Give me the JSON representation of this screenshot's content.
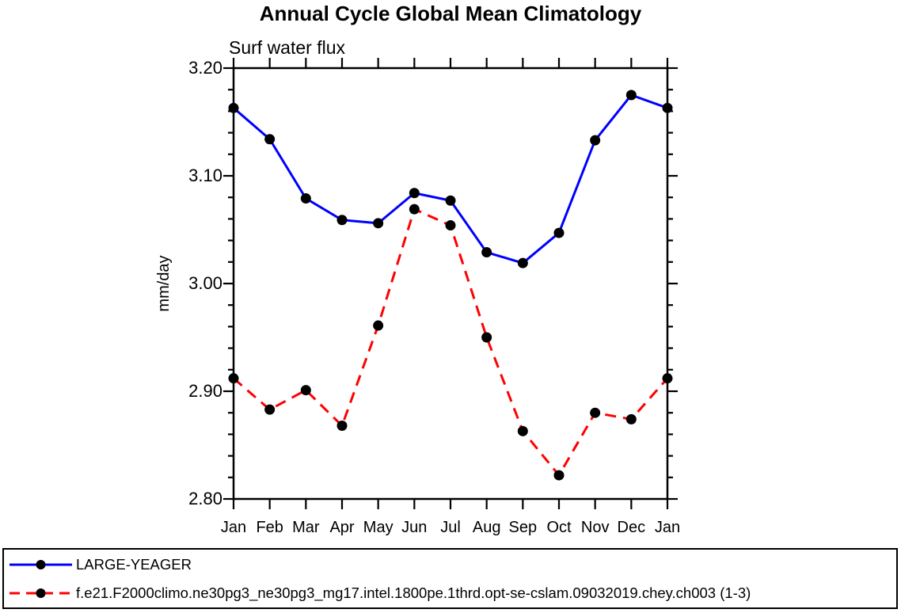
{
  "page": {
    "background": "#ffffff"
  },
  "chart_data": {
    "type": "line",
    "title": "Annual Cycle Global Mean Climatology",
    "subtitle": "Surf water flux",
    "xlabel": "",
    "ylabel": "mm/day",
    "categories": [
      "Jan",
      "Feb",
      "Mar",
      "Apr",
      "May",
      "Jun",
      "Jul",
      "Aug",
      "Sep",
      "Oct",
      "Nov",
      "Dec",
      "Jan"
    ],
    "ylim": [
      2.8,
      3.2
    ],
    "y_major_tick_step": 0.1,
    "y_minor_tick_step": 0.02,
    "y_tick_labels": [
      "3.20",
      "3.10",
      "3.00",
      "2.90",
      "2.80"
    ],
    "grid": false,
    "tick_direction": "outward",
    "legend_position": "bottom-box",
    "axis_color": "#000000",
    "marker_shape": "filled-circle",
    "series": [
      {
        "name": "LARGE-YEAGER",
        "line_color": "#0000ff",
        "line_style": "solid",
        "marker_color": "#000000",
        "values": [
          3.163,
          3.134,
          3.079,
          3.059,
          3.056,
          3.084,
          3.077,
          3.029,
          3.019,
          3.047,
          3.133,
          3.175,
          3.163
        ]
      },
      {
        "name": "f.e21.F2000climo.ne30pg3_ne30pg3_mg17.intel.1800pe.1thrd.opt-se-cslam.09032019.chey.ch003 (1-3)",
        "line_color": "#ff0000",
        "line_style": "dashed",
        "marker_color": "#000000",
        "values": [
          2.912,
          2.883,
          2.901,
          2.868,
          2.961,
          3.069,
          3.054,
          2.95,
          2.863,
          2.822,
          2.88,
          2.874,
          2.912
        ]
      }
    ]
  }
}
